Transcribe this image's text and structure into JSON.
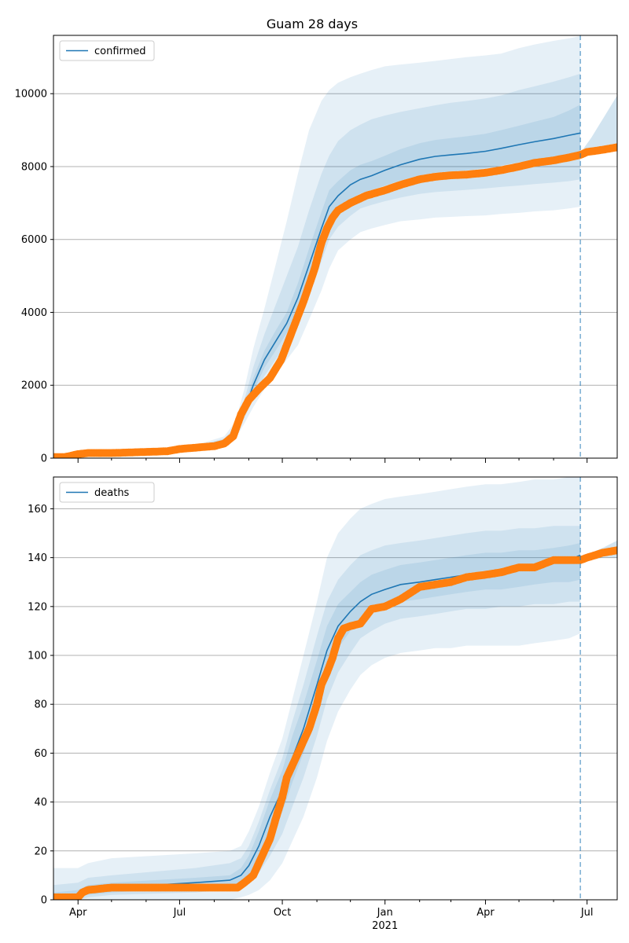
{
  "colors": {
    "model_line": "#1f77b4",
    "observed": "#ff7f0e",
    "band": "#1f77b4",
    "grid": "#b0b0b0",
    "forecast_line": "#1f77b4"
  },
  "chart_data": [
    {
      "type": "line",
      "title": "Guam 28 days",
      "legend": {
        "labels": [
          "confirmed"
        ],
        "placement": "top-left"
      },
      "grid": "y",
      "xlim": [
        "2020-03-10",
        "2021-07-28"
      ],
      "ylim": [
        0,
        11600
      ],
      "yticks": [
        0,
        2000,
        4000,
        6000,
        8000,
        10000
      ],
      "forecast_start": "2021-06-25",
      "model": {
        "name": "confirmed",
        "x": [
          "2020-03-10",
          "2020-03-25",
          "2020-04-10",
          "2020-05-01",
          "2020-06-01",
          "2020-07-01",
          "2020-07-20",
          "2020-08-10",
          "2020-08-20",
          "2020-08-28",
          "2020-09-05",
          "2020-09-15",
          "2020-09-25",
          "2020-10-05",
          "2020-10-15",
          "2020-10-25",
          "2020-11-05",
          "2020-11-12",
          "2020-11-20",
          "2020-12-01",
          "2020-12-10",
          "2020-12-20",
          "2021-01-01",
          "2021-01-15",
          "2021-02-01",
          "2021-02-15",
          "2021-03-01",
          "2021-03-15",
          "2021-04-01",
          "2021-04-15",
          "2021-05-01",
          "2021-05-15",
          "2021-06-01",
          "2021-06-15",
          "2021-06-25"
        ],
        "y": [
          50,
          70,
          150,
          170,
          200,
          280,
          330,
          480,
          700,
          1300,
          2000,
          2700,
          3200,
          3700,
          4400,
          5300,
          6300,
          6900,
          7200,
          7500,
          7650,
          7750,
          7900,
          8050,
          8200,
          8280,
          8320,
          8360,
          8420,
          8500,
          8600,
          8680,
          8770,
          8860,
          8920
        ],
        "bands": [
          {
            "lower": [
              40,
              55,
              120,
              140,
              160,
              230,
              280,
              380,
              530,
              950,
              1400,
              1900,
              2300,
              2700,
              3100,
              3800,
              4600,
              5200,
              5700,
              6000,
              6200,
              6300,
              6400,
              6500,
              6550,
              6600,
              6620,
              6640,
              6660,
              6700,
              6730,
              6770,
              6800,
              6850,
              6900
            ],
            "upper": [
              60,
              90,
              190,
              210,
              240,
              330,
              400,
              600,
              1000,
              1900,
              3000,
              4100,
              5300,
              6500,
              7800,
              9000,
              9800,
              10100,
              10300,
              10450,
              10550,
              10650,
              10750,
              10800,
              10850,
              10900,
              10950,
              11000,
              11050,
              11100,
              11250,
              11350,
              11450,
              11520,
              11580
            ]
          },
          {
            "lower": [
              45,
              62,
              135,
              155,
              180,
              255,
              305,
              430,
              610,
              1100,
              1650,
              2250,
              2700,
              3150,
              3700,
              4500,
              5400,
              6000,
              6350,
              6650,
              6850,
              6950,
              7050,
              7150,
              7250,
              7300,
              7330,
              7360,
              7400,
              7440,
              7480,
              7520,
              7560,
              7600,
              7650
            ],
            "upper": [
              55,
              80,
              165,
              190,
              220,
              305,
              365,
              540,
              850,
              1600,
              2500,
              3400,
              4200,
              5000,
              5800,
              6800,
              7800,
              8300,
              8700,
              9000,
              9150,
              9300,
              9400,
              9500,
              9600,
              9680,
              9750,
              9800,
              9870,
              9950,
              10100,
              10200,
              10330,
              10450,
              10550
            ]
          },
          {
            "lower": [
              47,
              66,
              142,
              162,
              190,
              265,
              318,
              455,
              660,
              1200,
              1820,
              2480,
              2950,
              3430,
              4050,
              4900,
              5850,
              6450,
              6800,
              7100,
              7260,
              7360,
              7480,
              7620,
              7760,
              7830,
              7870,
              7900,
              7960,
              8030,
              8120,
              8190,
              8260,
              8330,
              8380
            ],
            "upper": [
              53,
              74,
              158,
              178,
              210,
              295,
              345,
              505,
              760,
              1420,
              2200,
              2950,
              3500,
              4000,
              4800,
              5750,
              6750,
              7350,
              7600,
              7900,
              8050,
              8150,
              8300,
              8480,
              8640,
              8730,
              8780,
              8830,
              8900,
              9000,
              9120,
              9230,
              9360,
              9540,
              9700
            ]
          }
        ]
      },
      "observed": {
        "x": [
          "2020-03-10",
          "2020-03-20",
          "2020-03-25",
          "2020-04-01",
          "2020-04-10",
          "2020-05-01",
          "2020-06-01",
          "2020-06-20",
          "2020-07-01",
          "2020-07-20",
          "2020-08-01",
          "2020-08-10",
          "2020-08-18",
          "2020-08-25",
          "2020-09-01",
          "2020-09-10",
          "2020-09-20",
          "2020-09-30",
          "2020-10-10",
          "2020-10-20",
          "2020-10-30",
          "2020-11-05",
          "2020-11-10",
          "2020-11-15",
          "2020-11-20",
          "2020-12-01",
          "2020-12-15",
          "2021-01-01",
          "2021-01-15",
          "2021-02-01",
          "2021-02-15",
          "2021-03-01",
          "2021-03-15",
          "2021-04-01",
          "2021-04-15",
          "2021-05-01",
          "2021-05-15",
          "2021-06-01",
          "2021-06-15",
          "2021-06-25",
          "2021-07-01",
          "2021-07-15",
          "2021-07-28"
        ],
        "y": [
          30,
          30,
          60,
          110,
          140,
          140,
          170,
          190,
          250,
          300,
          330,
          400,
          600,
          1200,
          1600,
          1900,
          2200,
          2700,
          3500,
          4300,
          5200,
          5900,
          6300,
          6600,
          6800,
          7000,
          7200,
          7350,
          7500,
          7650,
          7720,
          7760,
          7780,
          7830,
          7900,
          8000,
          8100,
          8170,
          8250,
          8320,
          8400,
          8460,
          8530
        ]
      },
      "future_bands": {
        "x": [
          "2021-06-28",
          "2021-07-05",
          "2021-07-15",
          "2021-07-28"
        ],
        "upper": [
          8500,
          8800,
          9300,
          9950
        ],
        "lower": [
          8380,
          8420,
          8480,
          8540
        ]
      },
      "xticks": [
        {
          "date": "2020-04-01",
          "label": "Apr"
        },
        {
          "date": "2020-07-01",
          "label": "Jul"
        },
        {
          "date": "2020-10-01",
          "label": "Oct"
        },
        {
          "date": "2021-01-01",
          "label": "Jan"
        },
        {
          "date": "2021-04-01",
          "label": "Apr"
        },
        {
          "date": "2021-07-01",
          "label": "Jul"
        }
      ],
      "minor_xticks": [
        "2020-05-01",
        "2020-06-01",
        "2020-08-01",
        "2020-09-01",
        "2020-11-01",
        "2020-12-01",
        "2021-02-01",
        "2021-03-01",
        "2021-05-01",
        "2021-06-01"
      ],
      "show_xtick_labels": false
    },
    {
      "type": "line",
      "title": "",
      "legend": {
        "labels": [
          "deaths"
        ],
        "placement": "top-left"
      },
      "grid": "y",
      "xlim": [
        "2020-03-10",
        "2021-07-28"
      ],
      "ylim": [
        0,
        173
      ],
      "yticks": [
        0,
        20,
        40,
        60,
        80,
        100,
        120,
        140,
        160
      ],
      "forecast_start": "2021-06-25",
      "year_label": "2021",
      "model": {
        "name": "deaths",
        "x": [
          "2020-03-10",
          "2020-04-01",
          "2020-04-10",
          "2020-05-01",
          "2020-07-15",
          "2020-08-15",
          "2020-08-25",
          "2020-09-01",
          "2020-09-10",
          "2020-09-20",
          "2020-10-01",
          "2020-10-10",
          "2020-10-20",
          "2020-11-01",
          "2020-11-10",
          "2020-11-20",
          "2020-12-01",
          "2020-12-10",
          "2020-12-20",
          "2021-01-01",
          "2021-01-15",
          "2021-02-01",
          "2021-02-15",
          "2021-03-01",
          "2021-03-15",
          "2021-04-01",
          "2021-04-15",
          "2021-05-01",
          "2021-05-15",
          "2021-06-01",
          "2021-06-15",
          "2021-06-25"
        ],
        "y": [
          1,
          2,
          4,
          5,
          7,
          8,
          10,
          14,
          22,
          34,
          45,
          58,
          70,
          88,
          102,
          112,
          118,
          122,
          125,
          127,
          129,
          130,
          131,
          132,
          133,
          134,
          135,
          136,
          137,
          138,
          139,
          141
        ],
        "bands": [
          {
            "lower": [
              0,
              0,
              0,
              0,
              0,
              0,
              1,
              2,
              4,
              8,
              15,
              24,
              34,
              50,
              65,
              77,
              86,
              92,
              96,
              99,
              101,
              102,
              103,
              103,
              104,
              104,
              104,
              104,
              105,
              106,
              107,
              109
            ],
            "upper": [
              13,
              13,
              15,
              17,
              19,
              20,
              22,
              28,
              38,
              52,
              66,
              82,
              100,
              122,
              140,
              150,
              156,
              160,
              162,
              164,
              165,
              166,
              167,
              168,
              169,
              170,
              170,
              171,
              172,
              172,
              173,
              173
            ]
          },
          {
            "lower": [
              0,
              0,
              1,
              2,
              3,
              4,
              5,
              7,
              11,
              18,
              27,
              38,
              50,
              67,
              82,
              93,
              101,
              107,
              110,
              113,
              115,
              116,
              117,
              118,
              119,
              119,
              120,
              120,
              121,
              121,
              122,
              122
            ],
            "upper": [
              6,
              7,
              9,
              10,
              13,
              15,
              17,
              22,
              32,
              45,
              58,
              73,
              88,
              108,
              122,
              131,
              137,
              141,
              143,
              145,
              146,
              147,
              148,
              149,
              150,
              151,
              151,
              152,
              152,
              153,
              153,
              153
            ]
          },
          {
            "lower": [
              0,
              1,
              2,
              3,
              5,
              6,
              7,
              10,
              16,
              26,
              36,
              48,
              60,
              78,
              92,
              103,
              110,
              115,
              118,
              120,
              122,
              123,
              124,
              125,
              126,
              127,
              127,
              128,
              129,
              130,
              130,
              131
            ],
            "upper": [
              3,
              4,
              6,
              7,
              9,
              10,
              13,
              18,
              28,
              41,
              53,
              67,
              80,
              98,
              112,
              121,
              126,
              130,
              133,
              135,
              137,
              138,
              139,
              140,
              141,
              142,
              142,
              143,
              143,
              144,
              145,
              146
            ]
          }
        ]
      },
      "observed": {
        "x": [
          "2020-03-10",
          "2020-04-01",
          "2020-04-05",
          "2020-04-10",
          "2020-05-01",
          "2020-06-01",
          "2020-07-01",
          "2020-08-01",
          "2020-08-22",
          "2020-08-28",
          "2020-09-05",
          "2020-09-10",
          "2020-09-15",
          "2020-09-20",
          "2020-09-25",
          "2020-10-01",
          "2020-10-05",
          "2020-10-10",
          "2020-10-15",
          "2020-10-20",
          "2020-10-25",
          "2020-11-01",
          "2020-11-05",
          "2020-11-10",
          "2020-11-15",
          "2020-11-20",
          "2020-11-25",
          "2020-12-01",
          "2020-12-10",
          "2020-12-20",
          "2021-01-01",
          "2021-01-15",
          "2021-02-01",
          "2021-02-15",
          "2021-03-01",
          "2021-03-15",
          "2021-04-01",
          "2021-04-15",
          "2021-05-01",
          "2021-05-15",
          "2021-06-01",
          "2021-06-15",
          "2021-06-25",
          "2021-07-01",
          "2021-07-15",
          "2021-07-28"
        ],
        "y": [
          1,
          1,
          3,
          4,
          5,
          5,
          5,
          5,
          5,
          7,
          10,
          15,
          20,
          25,
          33,
          42,
          50,
          55,
          60,
          65,
          70,
          80,
          88,
          93,
          99,
          107,
          111,
          112,
          113,
          119,
          120,
          123,
          128,
          129,
          130,
          132,
          133,
          134,
          136,
          136,
          139,
          139,
          139,
          140,
          142,
          143
        ]
      },
      "future_bands": {
        "x": [
          "2021-06-28",
          "2021-07-05",
          "2021-07-15",
          "2021-07-28"
        ],
        "upper": [
          141,
          142,
          144,
          147
        ],
        "lower": [
          139,
          139,
          140,
          140
        ]
      },
      "xticks": [
        {
          "date": "2020-04-01",
          "label": "Apr"
        },
        {
          "date": "2020-07-01",
          "label": "Jul"
        },
        {
          "date": "2020-10-01",
          "label": "Oct"
        },
        {
          "date": "2021-01-01",
          "label": "Jan"
        },
        {
          "date": "2021-04-01",
          "label": "Apr"
        },
        {
          "date": "2021-07-01",
          "label": "Jul"
        }
      ],
      "minor_xticks": [
        "2020-05-01",
        "2020-06-01",
        "2020-08-01",
        "2020-09-01",
        "2020-11-01",
        "2020-12-01",
        "2021-02-01",
        "2021-03-01",
        "2021-05-01",
        "2021-06-01"
      ],
      "show_xtick_labels": true
    }
  ]
}
